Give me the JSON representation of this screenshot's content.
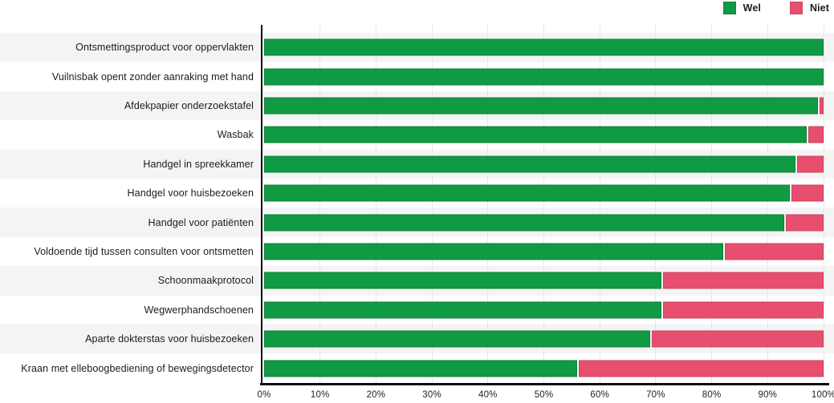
{
  "chart_data": {
    "type": "bar",
    "orientation": "horizontal",
    "stacked": true,
    "title": "",
    "xlabel": "",
    "ylabel": "",
    "xlim": [
      0,
      100
    ],
    "grid": true,
    "legend_position": "top-right",
    "x_ticks": [
      "0%",
      "10%",
      "20%",
      "30%",
      "40%",
      "50%",
      "60%",
      "70%",
      "80%",
      "90%",
      "100%"
    ],
    "categories": [
      "Ontsmettingsproduct voor oppervlakten",
      "Vuilnisbak opent zonder aanraking met hand",
      "Afdekpapier onderzoekstafel",
      "Wasbak",
      "Handgel in spreekkamer",
      "Handgel voor huisbezoeken",
      "Handgel voor patiënten",
      "Voldoende tijd tussen consulten voor ontsmetten",
      "Schoonmaakprotocol",
      "Wegwerphandschoenen",
      "Aparte dokterstas voor huisbezoeken",
      "Kraan met elleboogbediening of bewegingsdetector"
    ],
    "series": [
      {
        "name": "Wel",
        "color": "#119a44",
        "values": [
          100,
          100,
          99,
          97,
          95,
          94,
          93,
          82,
          71,
          71,
          69,
          56
        ]
      },
      {
        "name": "Niet",
        "color": "#e84f6e",
        "values": [
          0,
          0,
          1,
          3,
          5,
          6,
          7,
          18,
          29,
          29,
          31,
          44
        ]
      }
    ]
  },
  "legend": {
    "items": [
      {
        "label": "Wel",
        "color": "#119a44"
      },
      {
        "label": "Niet",
        "color": "#e84f6e"
      }
    ]
  },
  "style_colors": {
    "row_band": "#f4f4f4",
    "gridline": "#e7e7e7",
    "axis": "#0d0d0d",
    "text": "#1b1b1b"
  }
}
